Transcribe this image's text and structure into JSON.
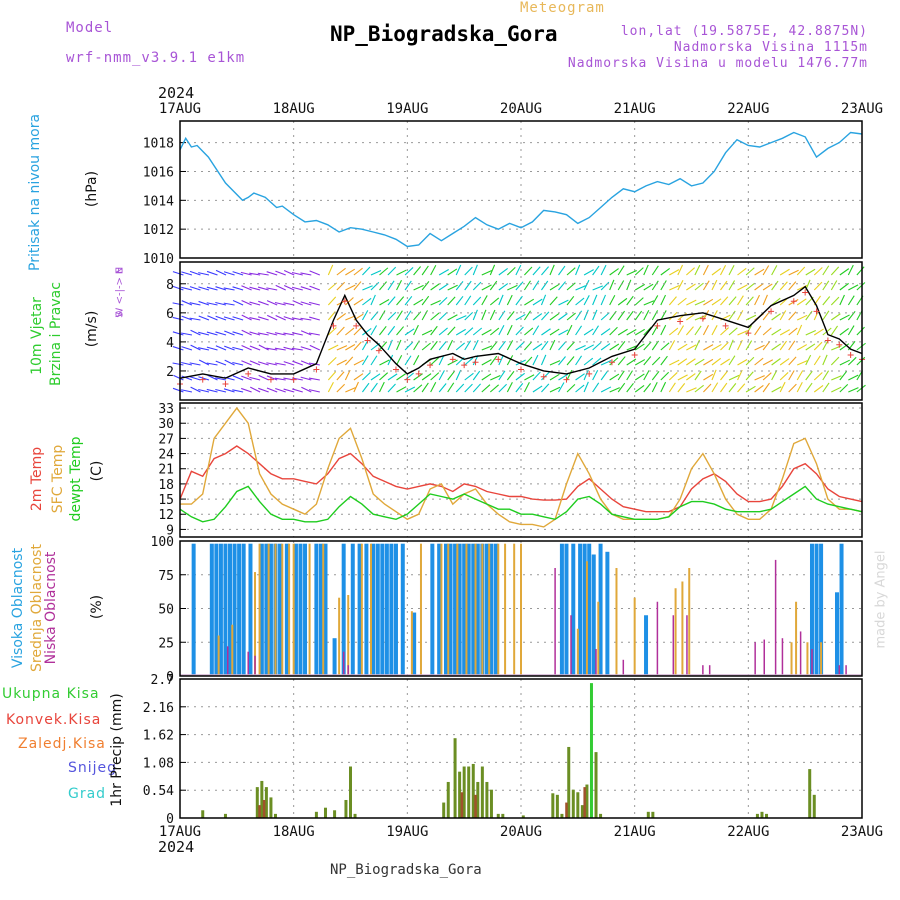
{
  "header": {
    "model_label": "Model",
    "model_name": "wrf-nmm_v3.9.1 e1km",
    "meteogram_label": "Meteogram",
    "title": "NP_Biogradska_Gora",
    "coords": "lon,lat (19.5875E, 42.8875N)",
    "altitude": "Nadmorska Visina 1115m",
    "model_altitude": "Nadmorska Visina u modelu 1476.77m",
    "year_top": "2024",
    "year_bottom": "2024",
    "footer_title": "NP_Biogradska_Gora",
    "watermark": "made by Angel"
  },
  "colors": {
    "pressure": "#29a3e0",
    "wind_speed_label": "#2ecc2e",
    "wind_dir_label": "#a855d6",
    "temp2m": "#e8453c",
    "sfc_temp": "#e0a83a",
    "dewpoint": "#1fcc1f",
    "high_cloud": "#1e90e6",
    "mid_cloud": "#e0a83a",
    "low_cloud": "#b0309a",
    "total_precip": "#33cc33",
    "conv_precip": "#e8453c",
    "strat_precip": "#f07f30",
    "snow": "#5555dd",
    "hail": "#33cccc"
  },
  "axis_labels": {
    "pressure": [
      "Pritisak na nivou mora",
      "(hPa)"
    ],
    "wind": [
      "10m Vjetar",
      "Brzina i Pravac",
      "(m/s)"
    ],
    "wind_compass": [
      "N",
      "W <-|-> E",
      "S"
    ],
    "temp": [
      "2m Temp",
      "SFC Temp",
      "dewpt Temp",
      "(C)"
    ],
    "cloud": [
      "Visoka Oblacnost",
      "Srednja Oblacnost",
      "Niska Oblacnost",
      "(%)"
    ],
    "precip": [
      "Ukupna Kisa",
      "Konvek.Kisa",
      "Zaledj.Kisa",
      "Snijeg",
      "Grad",
      "1hr Precip (mm)"
    ]
  },
  "chart_data": [
    {
      "type": "line",
      "panel": "pressure",
      "x_ticks": [
        "17AUG",
        "18AUG",
        "19AUG",
        "20AUG",
        "21AUG",
        "22AUG",
        "23AUG"
      ],
      "ylim": [
        1010,
        1019.5
      ],
      "y_ticks": [
        1010,
        1012,
        1014,
        1016,
        1018
      ],
      "series": [
        {
          "name": "Pritisak na nivou mora",
          "x_days": [
            0,
            0.05,
            0.1,
            0.15,
            0.25,
            0.4,
            0.55,
            0.6,
            0.65,
            0.75,
            0.85,
            0.9,
            1.0,
            1.1,
            1.2,
            1.3,
            1.4,
            1.5,
            1.6,
            1.7,
            1.8,
            1.9,
            2.0,
            2.1,
            2.2,
            2.3,
            2.4,
            2.5,
            2.6,
            2.7,
            2.8,
            2.9,
            3.0,
            3.1,
            3.2,
            3.3,
            3.4,
            3.5,
            3.6,
            3.7,
            3.8,
            3.9,
            4.0,
            4.1,
            4.2,
            4.3,
            4.4,
            4.5,
            4.6,
            4.7,
            4.8,
            4.9,
            5.0,
            5.1,
            5.2,
            5.3,
            5.4,
            5.5,
            5.6,
            5.7,
            5.8,
            5.9,
            6.0
          ],
          "values": [
            1017.5,
            1018.3,
            1017.7,
            1017.8,
            1017.0,
            1015.2,
            1014.0,
            1014.2,
            1014.5,
            1014.2,
            1013.5,
            1013.6,
            1013.0,
            1012.5,
            1012.6,
            1012.3,
            1011.8,
            1012.1,
            1012.0,
            1011.8,
            1011.6,
            1011.3,
            1010.8,
            1010.9,
            1011.7,
            1011.2,
            1011.7,
            1012.2,
            1012.8,
            1012.3,
            1012.0,
            1012.4,
            1012.1,
            1012.5,
            1013.3,
            1013.2,
            1013.0,
            1012.4,
            1012.8,
            1013.5,
            1014.2,
            1014.8,
            1014.6,
            1015.0,
            1015.3,
            1015.1,
            1015.5,
            1015.0,
            1015.2,
            1016.0,
            1017.3,
            1018.2,
            1017.8,
            1017.7,
            1018.0,
            1018.3,
            1018.7,
            1018.4,
            1017.0,
            1017.6,
            1018.0,
            1018.7,
            1018.6
          ]
        }
      ]
    },
    {
      "type": "line",
      "panel": "wind",
      "ylim": [
        0,
        9.5
      ],
      "y_ticks": [
        2,
        4,
        6,
        8
      ],
      "series": [
        {
          "name": "10m Vjetar",
          "x_days": [
            0,
            0.2,
            0.4,
            0.6,
            0.8,
            1.0,
            1.2,
            1.35,
            1.45,
            1.55,
            1.65,
            1.75,
            1.9,
            2.0,
            2.1,
            2.2,
            2.4,
            2.5,
            2.6,
            2.8,
            3.0,
            3.2,
            3.4,
            3.6,
            3.8,
            4.0,
            4.2,
            4.4,
            4.6,
            4.8,
            5.0,
            5.2,
            5.4,
            5.5,
            5.6,
            5.7,
            5.8,
            5.9,
            6.0
          ],
          "values": [
            1.5,
            1.8,
            1.5,
            2.2,
            1.8,
            1.8,
            2.5,
            5.5,
            7.2,
            5.5,
            4.5,
            3.8,
            2.5,
            1.8,
            2.2,
            2.8,
            3.2,
            2.8,
            3.0,
            3.2,
            2.5,
            2.0,
            1.8,
            2.2,
            3.0,
            3.5,
            5.5,
            5.8,
            6.0,
            5.5,
            5.0,
            6.5,
            7.2,
            7.8,
            6.5,
            4.5,
            4.2,
            3.5,
            3.2
          ]
        }
      ]
    },
    {
      "type": "line",
      "panel": "temperature",
      "ylim": [
        7.5,
        34
      ],
      "y_ticks": [
        9,
        12,
        15,
        18,
        21,
        24,
        27,
        30,
        33
      ],
      "x_days": [
        0,
        0.1,
        0.2,
        0.3,
        0.4,
        0.5,
        0.6,
        0.7,
        0.8,
        0.9,
        1.0,
        1.1,
        1.2,
        1.3,
        1.4,
        1.5,
        1.6,
        1.7,
        1.8,
        1.9,
        2.0,
        2.1,
        2.2,
        2.3,
        2.4,
        2.5,
        2.6,
        2.7,
        2.8,
        2.9,
        3.0,
        3.1,
        3.2,
        3.3,
        3.4,
        3.5,
        3.6,
        3.7,
        3.8,
        3.9,
        4.0,
        4.1,
        4.2,
        4.3,
        4.4,
        4.5,
        4.6,
        4.7,
        4.8,
        4.9,
        5.0,
        5.1,
        5.2,
        5.3,
        5.4,
        5.5,
        5.6,
        5.7,
        5.8,
        5.9,
        6.0
      ],
      "series": [
        {
          "name": "2m Temp",
          "values": [
            15,
            20.5,
            19.5,
            23,
            24,
            25.5,
            24,
            22,
            20,
            19,
            19,
            18.5,
            18,
            20,
            23,
            24,
            22,
            19.5,
            18.5,
            17.5,
            17,
            17.5,
            18,
            17.5,
            16.5,
            18,
            17.5,
            16.5,
            16,
            15.5,
            15.5,
            15,
            14.8,
            14.8,
            15,
            17.5,
            19,
            17,
            15,
            13.5,
            13,
            12.5,
            12.5,
            12.5,
            13.5,
            17,
            19,
            20,
            18.5,
            16,
            14.5,
            14.5,
            15,
            17.5,
            21,
            22,
            20,
            17,
            15.5,
            15,
            14.5
          ]
        },
        {
          "name": "SFC Temp",
          "values": [
            14,
            14,
            16,
            27,
            30,
            33,
            30,
            20,
            16,
            14,
            13,
            12,
            14,
            21,
            27,
            29,
            23,
            16,
            14,
            12.5,
            11,
            12,
            17,
            18,
            14,
            16,
            17,
            14,
            12,
            10.5,
            10,
            10,
            9.5,
            11,
            18,
            24,
            20,
            15,
            12,
            11,
            11,
            11,
            11,
            11.5,
            15,
            21,
            24,
            20,
            15,
            12,
            11,
            11,
            13,
            19,
            26,
            27,
            22,
            15,
            13,
            13,
            12.5
          ]
        },
        {
          "name": "dewpt Temp",
          "values": [
            13,
            11.5,
            10.5,
            11,
            13.5,
            16.5,
            17.5,
            14.5,
            12,
            11,
            11,
            10.5,
            10.5,
            11,
            13.5,
            15.5,
            14,
            12,
            11.5,
            11,
            12,
            14,
            16,
            15.5,
            15,
            16,
            15,
            14,
            13,
            13,
            12,
            12,
            11.5,
            11,
            12.5,
            15,
            15.5,
            14,
            12,
            11.5,
            11,
            11,
            11,
            11.5,
            13.5,
            14.5,
            14.5,
            14,
            13,
            12.5,
            12.5,
            12.5,
            13,
            14.5,
            16,
            17.5,
            15,
            14,
            13.5,
            13,
            12.5
          ]
        }
      ]
    },
    {
      "type": "bar",
      "panel": "cloud",
      "ylim": [
        0,
        100
      ],
      "y_ticks": [
        0,
        25,
        50,
        75,
        100
      ],
      "series": [
        {
          "name": "Visoka Oblacnost",
          "x_days": [
            0.12,
            0.28,
            0.32,
            0.36,
            0.4,
            0.44,
            0.48,
            0.52,
            0.56,
            0.62,
            0.72,
            0.76,
            0.8,
            0.84,
            0.88,
            0.94,
            1.02,
            1.06,
            1.1,
            1.2,
            1.24,
            1.28,
            1.36,
            1.44,
            1.52,
            1.58,
            1.64,
            1.7,
            1.74,
            1.78,
            1.82,
            1.86,
            1.9,
            1.96,
            2.06,
            2.22,
            2.28,
            2.34,
            2.38,
            2.42,
            2.46,
            2.5,
            2.54,
            2.58,
            2.62,
            2.66,
            2.7,
            2.74,
            2.78,
            3.36,
            3.4,
            3.46,
            3.52,
            3.56,
            3.6,
            3.64,
            3.7,
            3.76,
            4.1,
            5.56,
            5.6,
            5.64,
            5.78,
            5.82
          ],
          "values": [
            98,
            98,
            98,
            98,
            98,
            98,
            98,
            98,
            98,
            98,
            98,
            98,
            98,
            98,
            98,
            98,
            98,
            98,
            98,
            98,
            98,
            98,
            28,
            98,
            98,
            98,
            98,
            98,
            98,
            98,
            98,
            98,
            98,
            98,
            47,
            98,
            98,
            98,
            98,
            98,
            98,
            98,
            98,
            98,
            98,
            98,
            98,
            98,
            98,
            98,
            98,
            98,
            98,
            98,
            98,
            90,
            98,
            92,
            45,
            98,
            98,
            98,
            62,
            98
          ]
        },
        {
          "name": "Srednja Oblacnost",
          "x_days": [
            0.34,
            0.46,
            0.66,
            0.7,
            0.78,
            0.84,
            0.9,
            0.96,
            1.0,
            1.14,
            1.26,
            1.4,
            1.48,
            1.6,
            1.68,
            2.04,
            2.12,
            2.3,
            2.36,
            2.44,
            2.52,
            2.6,
            2.66,
            2.72,
            2.8,
            2.86,
            2.94,
            3.0,
            3.5,
            3.58,
            3.68,
            3.84,
            4.0,
            4.36,
            4.42,
            4.48,
            5.38,
            5.42,
            5.52,
            5.64
          ],
          "values": [
            30,
            38,
            77,
            98,
            98,
            98,
            98,
            98,
            98,
            98,
            98,
            58,
            60,
            98,
            98,
            48,
            98,
            98,
            98,
            98,
            98,
            98,
            98,
            98,
            98,
            98,
            98,
            98,
            35,
            85,
            55,
            80,
            58,
            65,
            70,
            80,
            25,
            55,
            25,
            25
          ]
        },
        {
          "name": "Niska Oblacnost",
          "x_days": [
            0.42,
            0.6,
            0.66,
            1.44,
            1.48,
            3.3,
            3.44,
            3.66,
            3.9,
            4.2,
            4.34,
            4.46,
            4.6,
            4.66,
            5.06,
            5.14,
            5.24,
            5.3,
            5.46,
            5.56,
            5.8,
            5.86
          ],
          "values": [
            22,
            18,
            15,
            18,
            8,
            80,
            45,
            20,
            12,
            55,
            45,
            45,
            8,
            8,
            25,
            27,
            86,
            28,
            33,
            20,
            8,
            8
          ]
        }
      ]
    },
    {
      "type": "bar",
      "panel": "precip",
      "ylim": [
        0,
        2.7
      ],
      "y_ticks": [
        0,
        0.54,
        1.08,
        1.62,
        2.16,
        2.7
      ],
      "series": [
        {
          "name": "Ukupna Kisa",
          "x_days": [
            0.2,
            0.4,
            0.68,
            0.72,
            0.76,
            0.8,
            0.84,
            1.2,
            1.28,
            1.36,
            1.46,
            1.5,
            1.54,
            2.32,
            2.36,
            2.42,
            2.46,
            2.5,
            2.54,
            2.58,
            2.62,
            2.66,
            2.7,
            2.74,
            2.8,
            2.84,
            3.02,
            3.28,
            3.32,
            3.36,
            3.42,
            3.46,
            3.5,
            3.54,
            3.58,
            3.62,
            3.66,
            3.7,
            4.12,
            4.16,
            5.08,
            5.12,
            5.16,
            5.54,
            5.58
          ],
          "values": [
            0.15,
            0.08,
            0.6,
            0.72,
            0.6,
            0.4,
            0.08,
            0.12,
            0.2,
            0.15,
            0.35,
            1.0,
            0.08,
            0.3,
            0.7,
            1.55,
            0.9,
            1.0,
            1.0,
            1.05,
            0.7,
            1.0,
            0.7,
            0.55,
            0.08,
            0.08,
            0.05,
            0.48,
            0.45,
            0.08,
            1.38,
            0.55,
            0.5,
            0.25,
            0.65,
            2.62,
            1.28,
            0.08,
            0.12,
            0.12,
            0.08,
            0.12,
            0.08,
            0.95,
            0.45
          ]
        },
        {
          "name": "Konvek.Kisa",
          "x_days": [
            0.7,
            0.74,
            2.48,
            2.6,
            3.4,
            3.56
          ],
          "values": [
            0.25,
            0.35,
            0.5,
            0.45,
            0.3,
            0.6
          ]
        }
      ]
    }
  ]
}
